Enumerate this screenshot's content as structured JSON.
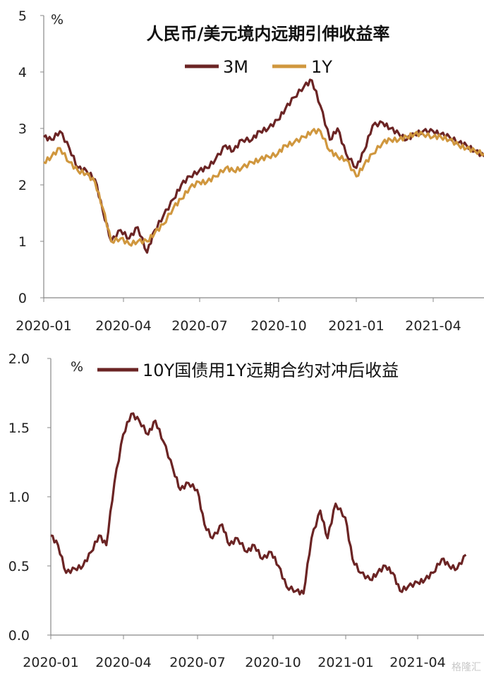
{
  "chart_data": [
    {
      "type": "line",
      "title": "人民币/美元境内远期引伸收益率",
      "unit_label": "%",
      "xlabel": "",
      "ylabel": "",
      "x_ticks": [
        "2020-01",
        "2020-04",
        "2020-07",
        "2020-10",
        "2021-01",
        "2021-04"
      ],
      "y_ticks": [
        "0",
        "1",
        "2",
        "3",
        "4",
        "5"
      ],
      "ylim": [
        0,
        5
      ],
      "xlim": [
        "2020-01-01",
        "2021-05-31"
      ],
      "legend_position": "top-center",
      "grid": false,
      "series": [
        {
          "name": "3M",
          "color": "#6b2424",
          "x": [
            "2020-01-01",
            "2020-01-10",
            "2020-01-20",
            "2020-01-31",
            "2020-02-10",
            "2020-02-20",
            "2020-03-01",
            "2020-03-10",
            "2020-03-20",
            "2020-03-31",
            "2020-04-10",
            "2020-04-20",
            "2020-05-01",
            "2020-05-10",
            "2020-05-20",
            "2020-06-01",
            "2020-06-10",
            "2020-06-20",
            "2020-07-01",
            "2020-07-10",
            "2020-07-20",
            "2020-08-01",
            "2020-08-10",
            "2020-08-20",
            "2020-09-01",
            "2020-09-10",
            "2020-09-20",
            "2020-10-01",
            "2020-10-10",
            "2020-10-20",
            "2020-11-01",
            "2020-11-10",
            "2020-11-20",
            "2020-12-01",
            "2020-12-10",
            "2020-12-20",
            "2021-01-01",
            "2021-01-10",
            "2021-01-20",
            "2021-02-01",
            "2021-02-10",
            "2021-02-20",
            "2021-03-01",
            "2021-03-10",
            "2021-03-20",
            "2021-04-01",
            "2021-04-10",
            "2021-04-20",
            "2021-05-01",
            "2021-05-10",
            "2021-05-20",
            "2021-05-31"
          ],
          "values": [
            2.85,
            2.8,
            2.95,
            2.65,
            2.3,
            2.25,
            2.1,
            1.55,
            1.0,
            1.2,
            1.05,
            1.25,
            0.8,
            1.2,
            1.45,
            1.75,
            2.0,
            2.15,
            2.25,
            2.3,
            2.45,
            2.7,
            2.6,
            2.8,
            2.8,
            2.95,
            3.0,
            3.15,
            3.35,
            3.55,
            3.75,
            3.85,
            3.4,
            2.8,
            3.0,
            2.55,
            2.3,
            2.6,
            3.05,
            3.1,
            3.0,
            2.9,
            2.8,
            2.9,
            2.95,
            2.95,
            2.9,
            2.85,
            2.75,
            2.7,
            2.6,
            2.5
          ]
        },
        {
          "name": "1Y",
          "color": "#d0973e",
          "x": [
            "2020-01-01",
            "2020-01-10",
            "2020-01-20",
            "2020-01-31",
            "2020-02-10",
            "2020-02-20",
            "2020-03-01",
            "2020-03-10",
            "2020-03-20",
            "2020-03-31",
            "2020-04-10",
            "2020-04-20",
            "2020-05-01",
            "2020-05-10",
            "2020-05-20",
            "2020-06-01",
            "2020-06-10",
            "2020-06-20",
            "2020-07-01",
            "2020-07-10",
            "2020-07-20",
            "2020-08-01",
            "2020-08-10",
            "2020-08-20",
            "2020-09-01",
            "2020-09-10",
            "2020-09-20",
            "2020-10-01",
            "2020-10-10",
            "2020-10-20",
            "2020-11-01",
            "2020-11-10",
            "2020-11-20",
            "2020-12-01",
            "2020-12-10",
            "2020-12-20",
            "2021-01-01",
            "2021-01-10",
            "2021-01-20",
            "2021-02-01",
            "2021-02-10",
            "2021-02-20",
            "2021-03-01",
            "2021-03-10",
            "2021-03-20",
            "2021-04-01",
            "2021-04-10",
            "2021-04-20",
            "2021-05-01",
            "2021-05-10",
            "2021-05-20",
            "2021-05-31"
          ],
          "values": [
            2.4,
            2.5,
            2.65,
            2.4,
            2.25,
            2.2,
            2.05,
            1.6,
            1.0,
            1.05,
            0.95,
            1.0,
            1.0,
            1.15,
            1.3,
            1.6,
            1.75,
            1.95,
            2.05,
            2.05,
            2.15,
            2.3,
            2.25,
            2.3,
            2.4,
            2.45,
            2.5,
            2.55,
            2.7,
            2.75,
            2.85,
            2.95,
            2.95,
            2.6,
            2.5,
            2.45,
            2.15,
            2.35,
            2.55,
            2.75,
            2.8,
            2.8,
            2.85,
            2.9,
            2.9,
            2.85,
            2.85,
            2.8,
            2.7,
            2.65,
            2.6,
            2.55
          ]
        }
      ]
    },
    {
      "type": "line",
      "title": "",
      "unit_label": "%",
      "xlabel": "",
      "ylabel": "",
      "x_ticks": [
        "2020-01",
        "2020-04",
        "2020-07",
        "2020-10",
        "2021-01",
        "2021-04"
      ],
      "y_ticks": [
        "0.0",
        "0.5",
        "1.0",
        "1.5",
        "2.0"
      ],
      "ylim": [
        0,
        2
      ],
      "xlim": [
        "2020-01-01",
        "2021-05-31"
      ],
      "legend_position": "top-center",
      "grid": false,
      "series": [
        {
          "name": "10Y国债用1Y远期合约对冲后收益",
          "color": "#6b2424",
          "x": [
            "2020-01-01",
            "2020-01-10",
            "2020-01-20",
            "2020-01-31",
            "2020-02-10",
            "2020-02-20",
            "2020-03-01",
            "2020-03-10",
            "2020-03-20",
            "2020-03-31",
            "2020-04-10",
            "2020-04-20",
            "2020-05-01",
            "2020-05-10",
            "2020-05-20",
            "2020-06-01",
            "2020-06-10",
            "2020-06-20",
            "2020-07-01",
            "2020-07-10",
            "2020-07-20",
            "2020-08-01",
            "2020-08-10",
            "2020-08-20",
            "2020-09-01",
            "2020-09-10",
            "2020-09-20",
            "2020-10-01",
            "2020-10-10",
            "2020-10-20",
            "2020-11-01",
            "2020-11-10",
            "2020-11-20",
            "2020-12-01",
            "2020-12-10",
            "2020-12-20",
            "2021-01-01",
            "2021-01-10",
            "2021-01-20",
            "2021-02-01",
            "2021-02-10",
            "2021-02-20",
            "2021-03-01",
            "2021-03-10",
            "2021-03-20",
            "2021-04-01",
            "2021-04-10",
            "2021-04-20",
            "2021-05-01",
            "2021-05-10",
            "2021-05-20",
            "2021-05-31"
          ],
          "values": [
            0.72,
            0.65,
            0.45,
            0.48,
            0.5,
            0.6,
            0.72,
            0.65,
            1.1,
            1.45,
            1.6,
            1.55,
            1.45,
            1.55,
            1.4,
            1.2,
            1.05,
            1.1,
            1.05,
            0.8,
            0.7,
            0.8,
            0.65,
            0.7,
            0.6,
            0.65,
            0.55,
            0.6,
            0.5,
            0.35,
            0.32,
            0.3,
            0.7,
            0.9,
            0.7,
            0.95,
            0.85,
            0.55,
            0.45,
            0.4,
            0.45,
            0.5,
            0.45,
            0.32,
            0.35,
            0.38,
            0.4,
            0.45,
            0.55,
            0.5,
            0.48,
            0.58
          ]
        }
      ]
    }
  ],
  "watermark": "格隆汇"
}
